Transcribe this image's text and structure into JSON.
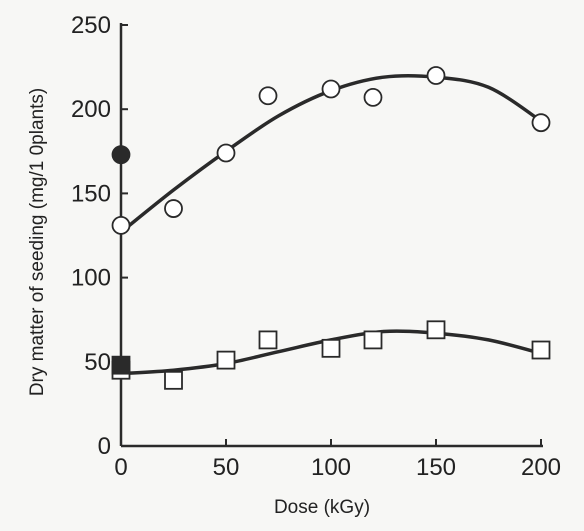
{
  "chart_data": {
    "type": "scatter",
    "title": "",
    "xlabel": "Dose  (kGy)",
    "ylabel": "Dry matter of seeding (mg/1 0plants)",
    "xlim": [
      0,
      200
    ],
    "ylim": [
      0,
      250
    ],
    "x_ticks": [
      0,
      50,
      100,
      150,
      200
    ],
    "y_ticks": [
      0,
      50,
      100,
      150,
      200,
      250
    ],
    "x_tick_labels": [
      "0",
      "50",
      "100",
      "150",
      "200"
    ],
    "y_tick_labels": [
      "0",
      "50",
      "100",
      "150",
      "200",
      "250"
    ],
    "grid": false,
    "legend": "none",
    "colors": {
      "ink": "#2a2a2a",
      "open_fill": "#ffffff",
      "solid_fill": "#2a2a2a"
    },
    "series": [
      {
        "marker": "open-circle",
        "x": [
          0,
          25,
          50,
          70,
          100,
          120,
          150,
          200
        ],
        "y": [
          131,
          141,
          174,
          208,
          212,
          207,
          220,
          192
        ]
      },
      {
        "marker": "filled-circle",
        "x": [
          0
        ],
        "y": [
          173
        ]
      },
      {
        "marker": "open-square",
        "x": [
          0,
          25,
          50,
          70,
          100,
          120,
          150,
          200
        ],
        "y": [
          45,
          39,
          51,
          63,
          58,
          63,
          69,
          57
        ]
      },
      {
        "marker": "filled-square",
        "x": [
          0
        ],
        "y": [
          48
        ]
      }
    ],
    "fit_curves": [
      {
        "for": "open-circle",
        "x": [
          0,
          25,
          50,
          75,
          100,
          125,
          150,
          175,
          200
        ],
        "y": [
          127,
          152,
          175,
          196,
          211,
          219,
          219,
          213,
          193
        ]
      },
      {
        "for": "open-square",
        "x": [
          0,
          25,
          50,
          75,
          100,
          125,
          150,
          175,
          200
        ],
        "y": [
          43,
          45,
          49,
          56,
          63,
          68,
          67,
          63,
          55
        ]
      }
    ]
  }
}
